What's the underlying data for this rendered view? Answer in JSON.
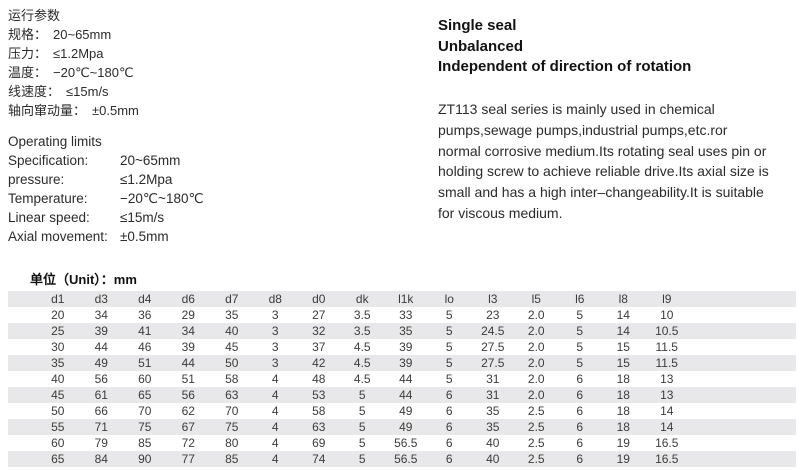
{
  "colors": {
    "stripe": "#e8e8ea",
    "text": "#2b2b2b",
    "heading": "#121212"
  },
  "cn_specs": {
    "title": "运行参数",
    "items": [
      {
        "label": "规格：",
        "value": "20~65mm"
      },
      {
        "label": "压力：",
        "value": "≤1.2Mpa"
      },
      {
        "label": "温度：",
        "value": "−20℃~180℃"
      },
      {
        "label": "线速度：",
        "value": "≤15m/s"
      },
      {
        "label": "轴向窜动量：",
        "value": "±0.5mm"
      }
    ]
  },
  "en_specs": {
    "title": "Operating limits",
    "items": [
      {
        "label": "Specification:",
        "value": "20~65mm"
      },
      {
        "label": "pressure:",
        "value": "≤1.2Mpa"
      },
      {
        "label": "Temperature:",
        "value": "−20℃~180℃"
      },
      {
        "label": "Linear speed:",
        "value": "≤15m/s"
      },
      {
        "label": "Axial movement:",
        "value": "±0.5mm"
      }
    ]
  },
  "features": {
    "lines": [
      "Single seal",
      "Unbalanced",
      "Independent of direction of rotation"
    ]
  },
  "description": {
    "lines": [
      "ZT113 seal series is mainly used in chemical",
      "pumps,sewage pumps,industrial pumps,etc.ror",
      "normal corrosive medium.Its rotating seal uses pin or",
      "holding screw to achieve reliable drive.Its axial size is",
      "small and has a high inter–changeability.It is suitable",
      "for viscous medium."
    ]
  },
  "table": {
    "unit_label": "单位（Unit）：mm",
    "headers": [
      "d1",
      "d3",
      "d4",
      "d6",
      "d7",
      "d8",
      "d0",
      "dk",
      "l1k",
      "lo",
      "l3",
      "l5",
      "l6",
      "l8",
      "l9"
    ],
    "rows": [
      [
        "20",
        "34",
        "36",
        "29",
        "35",
        "3",
        "27",
        "3.5",
        "33",
        "5",
        "23",
        "2.0",
        "5",
        "14",
        "10"
      ],
      [
        "25",
        "39",
        "41",
        "34",
        "40",
        "3",
        "32",
        "3.5",
        "35",
        "5",
        "24.5",
        "2.0",
        "5",
        "14",
        "10.5"
      ],
      [
        "30",
        "44",
        "46",
        "39",
        "45",
        "3",
        "37",
        "4.5",
        "39",
        "5",
        "27.5",
        "2.0",
        "5",
        "15",
        "11.5"
      ],
      [
        "35",
        "49",
        "51",
        "44",
        "50",
        "3",
        "42",
        "4.5",
        "39",
        "5",
        "27.5",
        "2.0",
        "5",
        "15",
        "11.5"
      ],
      [
        "40",
        "56",
        "60",
        "51",
        "58",
        "4",
        "48",
        "4.5",
        "44",
        "5",
        "31",
        "2.0",
        "6",
        "18",
        "13"
      ],
      [
        "45",
        "61",
        "65",
        "56",
        "63",
        "4",
        "53",
        "5",
        "44",
        "6",
        "31",
        "2.0",
        "6",
        "18",
        "13"
      ],
      [
        "50",
        "66",
        "70",
        "62",
        "70",
        "4",
        "58",
        "5",
        "49",
        "6",
        "35",
        "2.5",
        "6",
        "18",
        "14"
      ],
      [
        "55",
        "71",
        "75",
        "67",
        "75",
        "4",
        "63",
        "5",
        "49",
        "6",
        "35",
        "2.5",
        "6",
        "18",
        "14"
      ],
      [
        "60",
        "79",
        "85",
        "72",
        "80",
        "4",
        "69",
        "5",
        "56.5",
        "6",
        "40",
        "2.5",
        "6",
        "19",
        "16.5"
      ],
      [
        "65",
        "84",
        "90",
        "77",
        "85",
        "4",
        "74",
        "5",
        "56.5",
        "6",
        "40",
        "2.5",
        "6",
        "19",
        "16.5"
      ]
    ]
  }
}
